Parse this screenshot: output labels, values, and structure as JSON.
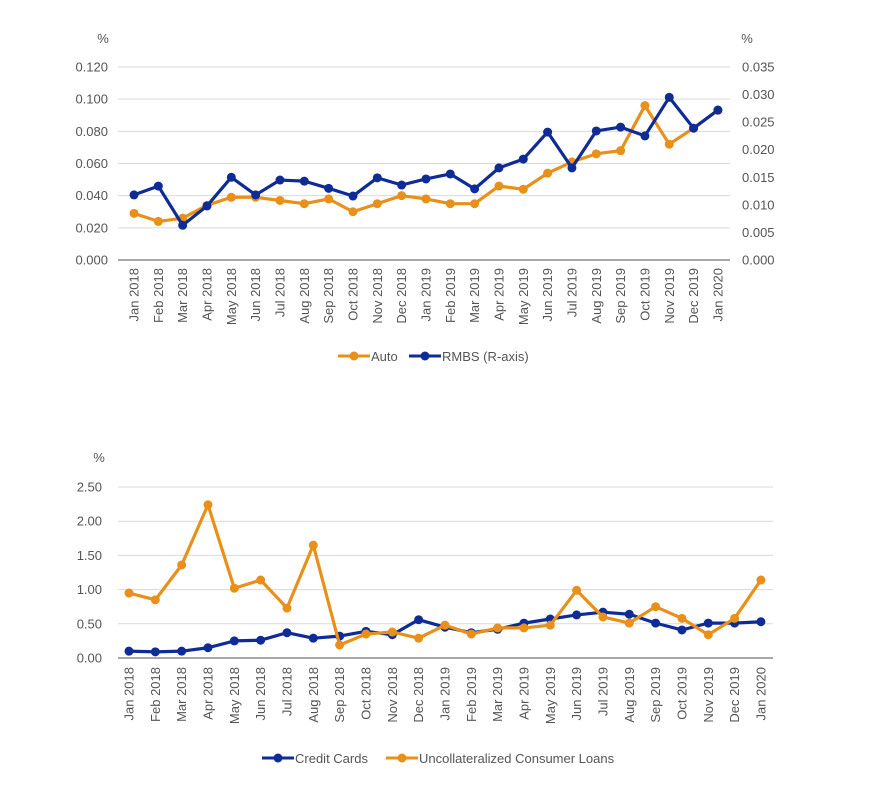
{
  "colors": {
    "orange": "#E8901A",
    "blue": "#0F2C96",
    "grid": "#d9d9d9",
    "axis": "#8c8c8c"
  },
  "chart_data": [
    {
      "type": "line",
      "unit_left": "%",
      "unit_right": "%",
      "categories": [
        "Jan 2018",
        "Feb 2018",
        "Mar 2018",
        "Apr 2018",
        "May 2018",
        "Jun 2018",
        "Jul 2018",
        "Aug 2018",
        "Sep 2018",
        "Oct 2018",
        "Nov 2018",
        "Dec 2018",
        "Jan 2019",
        "Feb 2019",
        "Mar 2019",
        "Apr 2019",
        "May 2019",
        "Jun 2019",
        "Jul 2019",
        "Aug 2019",
        "Sep 2019",
        "Oct 2019",
        "Nov 2019",
        "Dec 2019",
        "Jan 2020"
      ],
      "ylim_left": [
        0,
        0.12
      ],
      "yticks_left": [
        "0.000",
        "0.020",
        "0.040",
        "0.060",
        "0.080",
        "0.100",
        "0.120"
      ],
      "ylim_right": [
        0,
        0.035
      ],
      "yticks_right": [
        "0.000",
        "0.005",
        "0.010",
        "0.015",
        "0.020",
        "0.025",
        "0.030",
        "0.035"
      ],
      "grid": true,
      "legend": "bottom",
      "series": [
        {
          "name": "Auto",
          "axis": "left",
          "color": "#E8901A",
          "values": [
            0.029,
            0.024,
            0.026,
            0.034,
            0.039,
            0.039,
            0.037,
            0.035,
            0.038,
            0.03,
            0.035,
            0.04,
            0.038,
            0.035,
            0.035,
            0.046,
            0.044,
            0.054,
            0.061,
            0.066,
            0.068,
            0.096,
            0.072,
            0.082,
            0.093
          ]
        },
        {
          "name": "RMBS (R-axis)",
          "axis": "right",
          "color": "#0F2C96",
          "values": [
            0.0118,
            0.0134,
            0.0063,
            0.0098,
            0.015,
            0.0118,
            0.0145,
            0.0143,
            0.013,
            0.0116,
            0.0149,
            0.0136,
            0.0147,
            0.0156,
            0.0129,
            0.0167,
            0.0183,
            0.0232,
            0.0167,
            0.0234,
            0.0241,
            0.0225,
            0.0295,
            0.0239,
            0.0272
          ]
        }
      ]
    },
    {
      "type": "line",
      "unit_left": "%",
      "categories": [
        "Jan 2018",
        "Feb 2018",
        "Mar 2018",
        "Apr 2018",
        "May 2018",
        "Jun 2018",
        "Jul 2018",
        "Aug 2018",
        "Sep 2018",
        "Oct 2018",
        "Nov 2018",
        "Dec 2018",
        "Jan 2019",
        "Feb 2019",
        "Mar 2019",
        "Apr 2019",
        "May 2019",
        "Jun 2019",
        "Jul 2019",
        "Aug 2019",
        "Sep 2019",
        "Oct 2019",
        "Nov 2019",
        "Dec 2019",
        "Jan 2020"
      ],
      "ylim_left": [
        0,
        2.5
      ],
      "yticks_left": [
        "0.00",
        "0.50",
        "1.00",
        "1.50",
        "2.00",
        "2.50"
      ],
      "grid": true,
      "legend": "bottom",
      "series": [
        {
          "name": "Credit Cards",
          "color": "#0F2C96",
          "values": [
            0.1,
            0.09,
            0.1,
            0.15,
            0.25,
            0.26,
            0.37,
            0.29,
            0.32,
            0.39,
            0.34,
            0.56,
            0.45,
            0.37,
            0.42,
            0.51,
            0.57,
            0.63,
            0.67,
            0.64,
            0.51,
            0.41,
            0.51,
            0.51,
            0.53
          ]
        },
        {
          "name": "Uncollateralized Consumer Loans",
          "color": "#E8901A",
          "values": [
            0.95,
            0.85,
            1.36,
            2.24,
            1.02,
            1.14,
            0.73,
            1.65,
            0.19,
            0.35,
            0.38,
            0.29,
            0.48,
            0.35,
            0.44,
            0.44,
            0.48,
            0.99,
            0.6,
            0.51,
            0.75,
            0.58,
            0.34,
            0.58,
            1.14
          ]
        }
      ]
    }
  ]
}
